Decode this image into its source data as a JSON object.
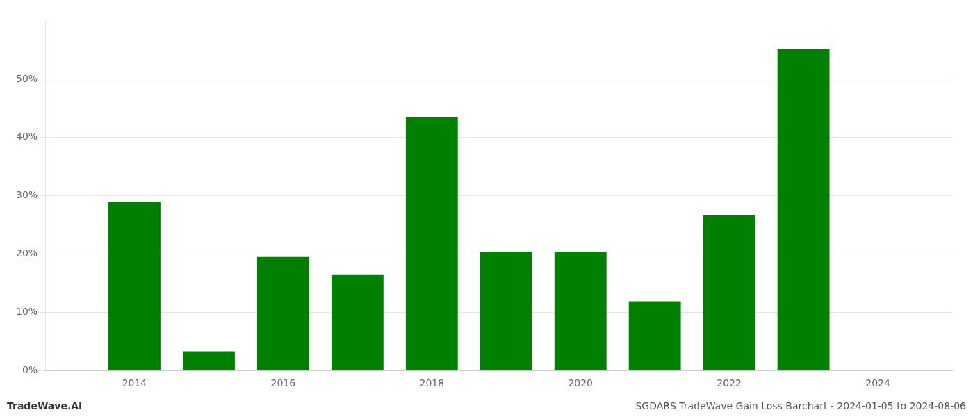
{
  "chart_data": {
    "type": "bar",
    "title": "SGDARS TradeWave Gain Loss Barchart - 2024-01-05 to 2024-08-06",
    "annotations": [
      "TradeWave.AI"
    ],
    "x": [
      2014,
      2015,
      2016,
      2017,
      2018,
      2019,
      2020,
      2021,
      2022,
      2023
    ],
    "values": [
      0.289,
      0.033,
      0.195,
      0.165,
      0.435,
      0.204,
      0.204,
      0.119,
      0.266,
      0.551
    ],
    "color": "#008000",
    "xlim": [
      2012.8,
      2025.0
    ],
    "xticks": [
      2014,
      2016,
      2018,
      2020,
      2022,
      2024
    ],
    "ylim": [
      0,
      0.6
    ],
    "yticks": [
      {
        "value": 0.0,
        "label": "0%"
      },
      {
        "value": 0.1,
        "label": "10%"
      },
      {
        "value": 0.2,
        "label": "20%"
      },
      {
        "value": 0.3,
        "label": "30%"
      },
      {
        "value": 0.4,
        "label": "40%"
      },
      {
        "value": 0.5,
        "label": "50%"
      }
    ],
    "grid": true
  }
}
